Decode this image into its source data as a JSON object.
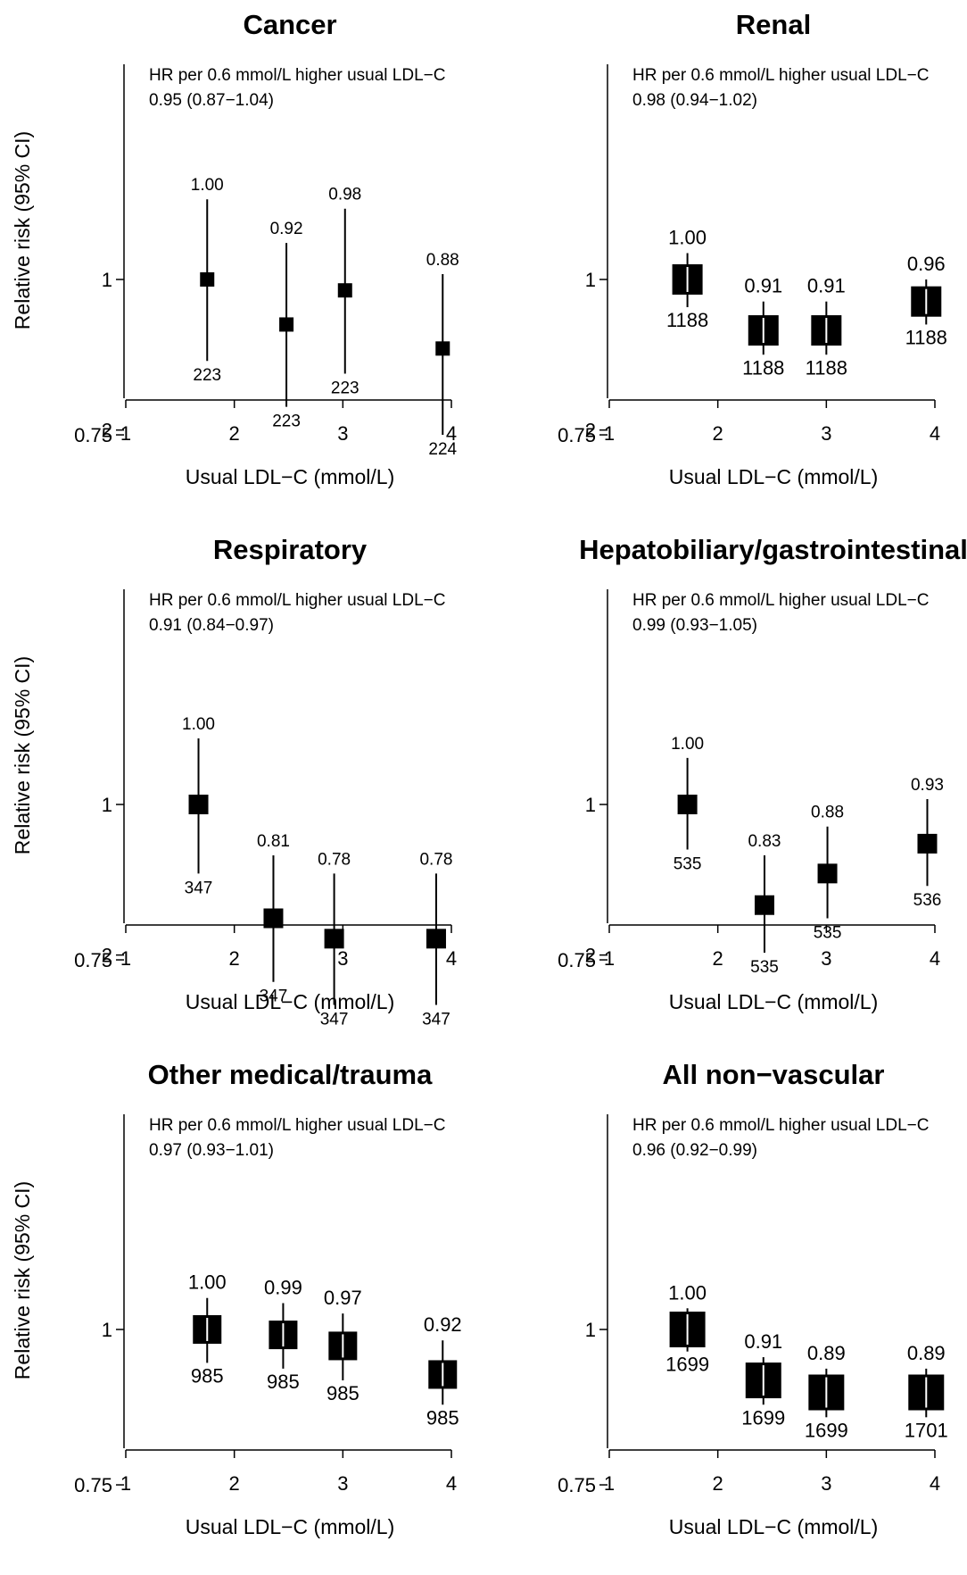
{
  "chart_data": [
    {
      "type": "scatter",
      "title": "Cancer",
      "hr_label": "HR per 0.6 mmol/L higher usual LDL−C",
      "hr_value": "0.95 (0.87−1.04)",
      "xlabel": "Usual LDL−C (mmol/L)",
      "ylabel": "Relative risk (95% CI)",
      "xlim": [
        1,
        4
      ],
      "ylim": [
        0.6,
        2.5
      ],
      "yscale": "log",
      "xticks": [
        "1",
        "2",
        "3",
        "4"
      ],
      "yticks": [
        {
          "value": 0.75,
          "label": "0.75"
        },
        {
          "value": 1,
          "label": "1"
        },
        {
          "value": 2,
          "label": "2"
        }
      ],
      "points": [
        {
          "x": 1.75,
          "rr": 1.0,
          "lo": 0.86,
          "hi": 1.16,
          "rr_label": "1.00",
          "n": "223",
          "size": "small"
        },
        {
          "x": 2.48,
          "rr": 0.92,
          "lo": 0.79,
          "hi": 1.07,
          "rr_label": "0.92",
          "n": "223",
          "size": "small"
        },
        {
          "x": 3.02,
          "rr": 0.98,
          "lo": 0.84,
          "hi": 1.14,
          "rr_label": "0.98",
          "n": "223",
          "size": "small"
        },
        {
          "x": 3.92,
          "rr": 0.88,
          "lo": 0.75,
          "hi": 1.01,
          "rr_label": "0.88",
          "n": "224",
          "size": "small"
        }
      ]
    },
    {
      "type": "scatter",
      "title": "Renal",
      "hr_label": "HR per 0.6 mmol/L higher usual LDL−C",
      "hr_value": "0.98 (0.94−1.02)",
      "xlabel": "Usual LDL−C (mmol/L)",
      "ylabel": "",
      "xlim": [
        1,
        4
      ],
      "ylim": [
        0.6,
        2.5
      ],
      "yscale": "log",
      "xticks": [
        "1",
        "2",
        "3",
        "4"
      ],
      "yticks": [
        {
          "value": 0.75,
          "label": "0.75"
        },
        {
          "value": 1,
          "label": "1"
        },
        {
          "value": 2,
          "label": "2"
        }
      ],
      "points": [
        {
          "x": 1.72,
          "rr": 1.0,
          "lo": 0.95,
          "hi": 1.05,
          "rr_label": "1.00",
          "n": "1188",
          "size": "large"
        },
        {
          "x": 2.42,
          "rr": 0.91,
          "lo": 0.87,
          "hi": 0.96,
          "rr_label": "0.91",
          "n": "1188",
          "size": "large"
        },
        {
          "x": 3.0,
          "rr": 0.91,
          "lo": 0.87,
          "hi": 0.96,
          "rr_label": "0.91",
          "n": "1188",
          "size": "large"
        },
        {
          "x": 3.92,
          "rr": 0.96,
          "lo": 0.92,
          "hi": 1.0,
          "rr_label": "0.96",
          "n": "1188",
          "size": "large"
        }
      ]
    },
    {
      "type": "scatter",
      "title": "Respiratory",
      "hr_label": "HR per 0.6 mmol/L higher usual LDL−C",
      "hr_value": "0.91 (0.84−0.97)",
      "xlabel": "Usual LDL−C (mmol/L)",
      "ylabel": "Relative risk (95% CI)",
      "xlim": [
        1,
        4
      ],
      "ylim": [
        0.6,
        2.5
      ],
      "yscale": "log",
      "xticks": [
        "1",
        "2",
        "3",
        "4"
      ],
      "yticks": [
        {
          "value": 0.75,
          "label": "0.75"
        },
        {
          "value": 1,
          "label": "1"
        },
        {
          "value": 2,
          "label": "2"
        }
      ],
      "points": [
        {
          "x": 1.67,
          "rr": 1.0,
          "lo": 0.88,
          "hi": 1.13,
          "rr_label": "1.00",
          "n": "347",
          "size": "medium"
        },
        {
          "x": 2.36,
          "rr": 0.81,
          "lo": 0.72,
          "hi": 0.91,
          "rr_label": "0.81",
          "n": "347",
          "size": "medium"
        },
        {
          "x": 2.92,
          "rr": 0.78,
          "lo": 0.69,
          "hi": 0.88,
          "rr_label": "0.78",
          "n": "347",
          "size": "medium"
        },
        {
          "x": 3.86,
          "rr": 0.78,
          "lo": 0.69,
          "hi": 0.88,
          "rr_label": "0.78",
          "n": "347",
          "size": "medium"
        }
      ]
    },
    {
      "type": "scatter",
      "title": "Hepatobiliary/gastrointestinal",
      "hr_label": "HR per 0.6 mmol/L higher usual LDL−C",
      "hr_value": "0.99 (0.93−1.05)",
      "xlabel": "Usual LDL−C (mmol/L)",
      "ylabel": "",
      "xlim": [
        1,
        4
      ],
      "ylim": [
        0.6,
        2.5
      ],
      "yscale": "log",
      "xticks": [
        "1",
        "2",
        "3",
        "4"
      ],
      "yticks": [
        {
          "value": 0.75,
          "label": "0.75"
        },
        {
          "value": 1,
          "label": "1"
        },
        {
          "value": 2,
          "label": "2"
        }
      ],
      "points": [
        {
          "x": 1.72,
          "rr": 1.0,
          "lo": 0.92,
          "hi": 1.09,
          "rr_label": "1.00",
          "n": "535",
          "size": "medium"
        },
        {
          "x": 2.43,
          "rr": 0.83,
          "lo": 0.76,
          "hi": 0.91,
          "rr_label": "0.83",
          "n": "535",
          "size": "medium"
        },
        {
          "x": 3.01,
          "rr": 0.88,
          "lo": 0.81,
          "hi": 0.96,
          "rr_label": "0.88",
          "n": "535",
          "size": "medium"
        },
        {
          "x": 3.93,
          "rr": 0.93,
          "lo": 0.86,
          "hi": 1.01,
          "rr_label": "0.93",
          "n": "536",
          "size": "medium"
        }
      ]
    },
    {
      "type": "scatter",
      "title": "Other medical/trauma",
      "hr_label": "HR per 0.6 mmol/L higher usual LDL−C",
      "hr_value": "0.97 (0.93−1.01)",
      "xlabel": "Usual LDL−C (mmol/L)",
      "ylabel": "Relative risk (95% CI)",
      "xlim": [
        1,
        4
      ],
      "ylim": [
        0.6,
        2.5
      ],
      "yscale": "log",
      "xticks": [
        "1",
        "2",
        "3",
        "4"
      ],
      "yticks": [
        {
          "value": 0.75,
          "label": "0.75"
        },
        {
          "value": 1,
          "label": "1"
        },
        {
          "value": 2,
          "label": "2"
        }
      ],
      "points": [
        {
          "x": 1.75,
          "rr": 1.0,
          "lo": 0.94,
          "hi": 1.06,
          "rr_label": "1.00",
          "n": "985",
          "size": "big"
        },
        {
          "x": 2.45,
          "rr": 0.99,
          "lo": 0.93,
          "hi": 1.05,
          "rr_label": "0.99",
          "n": "985",
          "size": "big"
        },
        {
          "x": 3.0,
          "rr": 0.97,
          "lo": 0.91,
          "hi": 1.03,
          "rr_label": "0.97",
          "n": "985",
          "size": "big"
        },
        {
          "x": 3.92,
          "rr": 0.92,
          "lo": 0.87,
          "hi": 0.98,
          "rr_label": "0.92",
          "n": "985",
          "size": "big"
        }
      ]
    },
    {
      "type": "scatter",
      "title": "All non−vascular",
      "hr_label": "HR per 0.6 mmol/L higher usual LDL−C",
      "hr_value": "0.96 (0.92−0.99)",
      "xlabel": "Usual LDL−C (mmol/L)",
      "ylabel": "",
      "xlim": [
        1,
        4
      ],
      "ylim": [
        0.6,
        2.5
      ],
      "yscale": "log",
      "xticks": [
        "1",
        "2",
        "3",
        "4"
      ],
      "yticks": [
        {
          "value": 0.75,
          "label": "0.75"
        },
        {
          "value": 1,
          "label": "1"
        },
        {
          "value": 2,
          "label": "2"
        }
      ],
      "points": [
        {
          "x": 1.72,
          "rr": 1.0,
          "lo": 0.96,
          "hi": 1.04,
          "rr_label": "1.00",
          "n": "1699",
          "size": "xlarge"
        },
        {
          "x": 2.42,
          "rr": 0.91,
          "lo": 0.87,
          "hi": 0.95,
          "rr_label": "0.91",
          "n": "1699",
          "size": "xlarge"
        },
        {
          "x": 3.0,
          "rr": 0.89,
          "lo": 0.85,
          "hi": 0.93,
          "rr_label": "0.89",
          "n": "1699",
          "size": "xlarge"
        },
        {
          "x": 3.92,
          "rr": 0.89,
          "lo": 0.85,
          "hi": 0.93,
          "rr_label": "0.89",
          "n": "1701",
          "size": "xlarge"
        }
      ]
    }
  ],
  "colors": {
    "marker": "#000000",
    "axis": "#000000",
    "ci_inside_marker": "#ffffff",
    "background": "#ffffff"
  }
}
